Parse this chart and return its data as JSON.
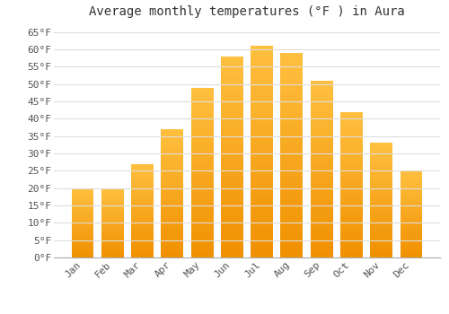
{
  "title": "Average monthly temperatures (°F ) in Aura",
  "months": [
    "Jan",
    "Feb",
    "Mar",
    "Apr",
    "May",
    "Jun",
    "Jul",
    "Aug",
    "Sep",
    "Oct",
    "Nov",
    "Dec"
  ],
  "values": [
    20,
    20,
    27,
    37,
    49,
    58,
    61,
    59,
    51,
    42,
    33,
    25
  ],
  "bar_color_top": "#FFC040",
  "bar_color_bottom": "#F09000",
  "bar_edge_color": "none",
  "background_color": "#FFFFFF",
  "plot_bg_color": "#FFFFFF",
  "grid_color": "#DDDDDD",
  "ylim": [
    0,
    67
  ],
  "yticks": [
    0,
    5,
    10,
    15,
    20,
    25,
    30,
    35,
    40,
    45,
    50,
    55,
    60,
    65
  ],
  "title_fontsize": 10,
  "tick_fontsize": 8,
  "font_family": "monospace",
  "bar_width": 0.75
}
